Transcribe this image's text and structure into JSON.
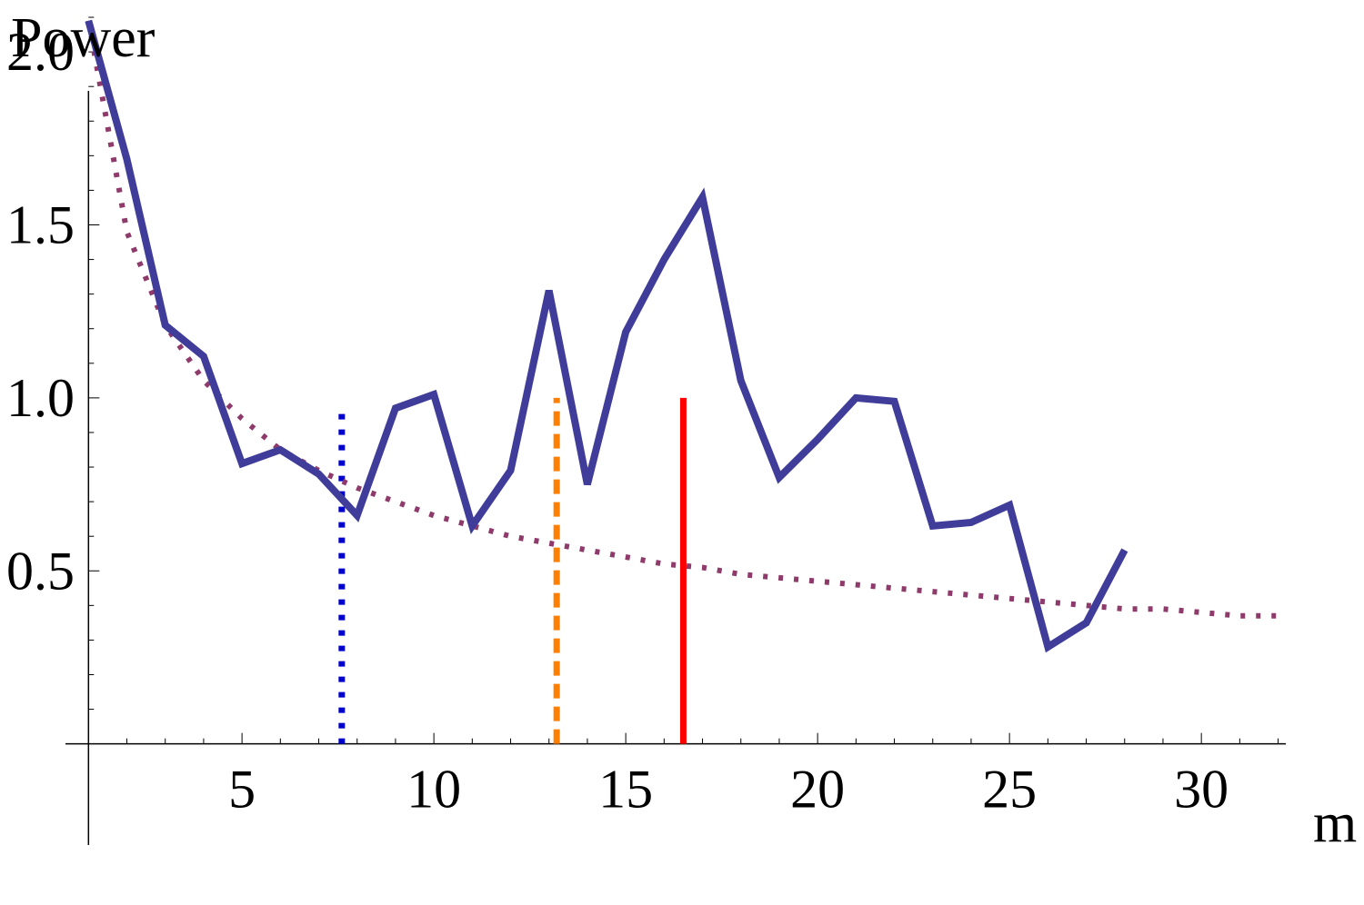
{
  "chart_data": {
    "type": "line",
    "xlabel": "m",
    "ylabel": "Power",
    "xlim": [
      0.4,
      32.2
    ],
    "ylim": [
      -0.45,
      2.15
    ],
    "x_axis_at_y": 0,
    "x_ticks": [
      5,
      10,
      15,
      20,
      25,
      30
    ],
    "x_tick_labels": [
      "5",
      "10",
      "15",
      "20",
      "25",
      "30"
    ],
    "y_ticks": [
      0.5,
      1.0,
      1.5,
      2.0
    ],
    "y_tick_labels": [
      "0.5",
      "1.0",
      "1.5",
      "2.0"
    ],
    "grid": false,
    "legend": "none",
    "series": [
      {
        "style": "solid",
        "color": "#3f3d99",
        "x": [
          1,
          2,
          3,
          4,
          5,
          6,
          7,
          8,
          9,
          10,
          11,
          12,
          13,
          14,
          15,
          16,
          17,
          18,
          19,
          20,
          21,
          22,
          23,
          24,
          25,
          26,
          27,
          28
        ],
        "y": [
          2.09,
          1.69,
          1.21,
          1.12,
          0.81,
          0.85,
          0.78,
          0.66,
          0.97,
          1.01,
          0.63,
          0.79,
          1.31,
          0.75,
          1.19,
          1.4,
          1.58,
          1.05,
          0.77,
          0.88,
          1.0,
          0.99,
          0.63,
          0.64,
          0.69,
          0.28,
          0.35,
          0.56
        ]
      },
      {
        "style": "dotted",
        "color": "#8e3b6b",
        "x": [
          1,
          2,
          3,
          4,
          5,
          6,
          7,
          8,
          9,
          10,
          11,
          12,
          13,
          14,
          15,
          16,
          17,
          18,
          19,
          20,
          21,
          22,
          23,
          24,
          25,
          26,
          27,
          28,
          29,
          30,
          31,
          32
        ],
        "y": [
          2.09,
          1.48,
          1.21,
          1.05,
          0.94,
          0.85,
          0.79,
          0.74,
          0.7,
          0.66,
          0.63,
          0.6,
          0.58,
          0.56,
          0.54,
          0.52,
          0.51,
          0.49,
          0.48,
          0.47,
          0.46,
          0.45,
          0.44,
          0.43,
          0.42,
          0.41,
          0.4,
          0.39,
          0.39,
          0.38,
          0.37,
          0.37
        ]
      }
    ],
    "vertical_lines": [
      {
        "x": 7.6,
        "y_top": 0.96,
        "style": "dotted",
        "color": "#0000cc"
      },
      {
        "x": 13.2,
        "y_top": 1.0,
        "style": "dashed",
        "color": "#ff8000"
      },
      {
        "x": 16.5,
        "y_top": 1.0,
        "style": "solid",
        "color": "#ff0000"
      }
    ]
  }
}
